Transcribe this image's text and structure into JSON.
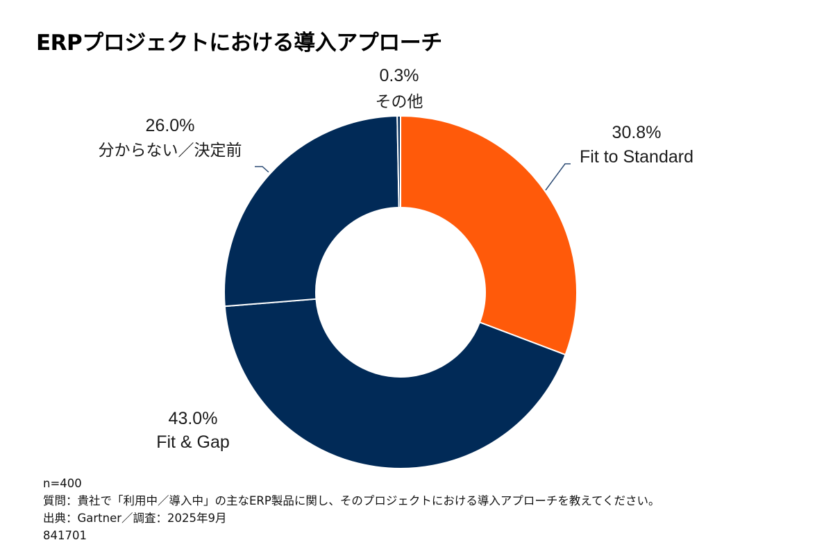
{
  "chart_data": {
    "type": "pie",
    "variant": "donut",
    "title": "ERPプロジェクトにおける導入アプローチ",
    "unit": "%",
    "start": "12 o'clock, clockwise",
    "slices": [
      {
        "label": "Fit to Standard",
        "value": 30.8,
        "value_label": "30.8%",
        "color": "#FF5A0A"
      },
      {
        "label": "Fit & Gap",
        "value": 43.0,
        "value_label": "43.0%",
        "color": "#012A57"
      },
      {
        "label": "分からない／決定前",
        "value": 26.0,
        "value_label": "26.0%",
        "color": "#012A57"
      },
      {
        "label": "その他",
        "value": 0.3,
        "value_label": "0.3%",
        "color": "#012A57"
      }
    ],
    "legend": "none (data labels outside slices)"
  },
  "footer": {
    "sample": "n=400",
    "question": "質問：貴社で「利用中／導入中」の主なERP製品に関し、そのプロジェクトにおける導入アプローチを教えてください。",
    "source": "出典：Gartner／調査：2025年9月",
    "id": "841701"
  }
}
